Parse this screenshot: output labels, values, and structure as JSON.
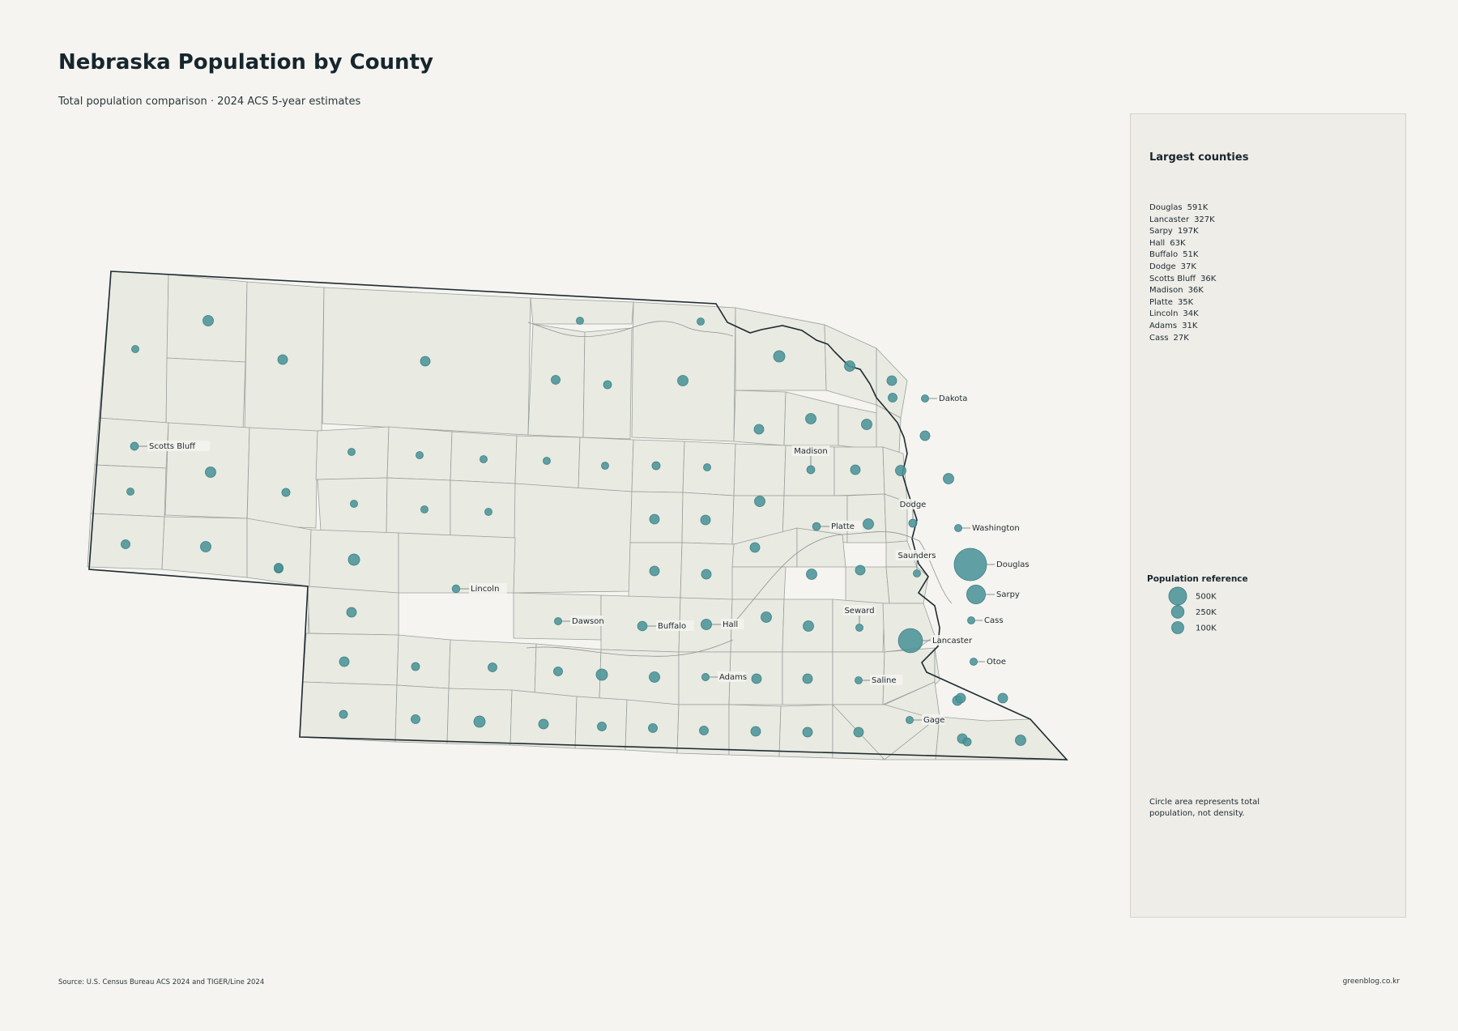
{
  "title": "Nebraska Population by County",
  "subtitle": "Total population comparison · 2024 ACS 5-year estimates",
  "colors": {
    "background": "#f5f4f0",
    "county_fill": "#e9eae2",
    "bubble": "#4b9498",
    "panel": "#efede8"
  },
  "panel": {
    "title": "Largest counties",
    "ranking": [
      {
        "name": "Douglas",
        "value": "591K"
      },
      {
        "name": "Lancaster",
        "value": "327K"
      },
      {
        "name": "Sarpy",
        "value": "197K"
      },
      {
        "name": "Hall",
        "value": "63K"
      },
      {
        "name": "Buffalo",
        "value": "51K"
      },
      {
        "name": "Dodge",
        "value": "37K"
      },
      {
        "name": "Scotts Bluff",
        "value": "36K"
      },
      {
        "name": "Madison",
        "value": "36K"
      },
      {
        "name": "Platte",
        "value": "35K"
      },
      {
        "name": "Lincoln",
        "value": "34K"
      },
      {
        "name": "Adams",
        "value": "31K"
      },
      {
        "name": "Cass",
        "value": "27K"
      }
    ],
    "legend_title": "Population reference",
    "legend_items": [
      {
        "label": "500K",
        "value": 500000
      },
      {
        "label": "250K",
        "value": 250000
      },
      {
        "label": "100K",
        "value": 100000
      }
    ],
    "note": "Circle area represents total population, not density."
  },
  "labeled_counties": [
    {
      "name": "Douglas",
      "population": 591000
    },
    {
      "name": "Lancaster",
      "population": 327000
    },
    {
      "name": "Sarpy",
      "population": 197000
    },
    {
      "name": "Hall",
      "population": 63000
    },
    {
      "name": "Buffalo",
      "population": 51000
    },
    {
      "name": "Dodge",
      "population": 37000
    },
    {
      "name": "Scotts Bluff",
      "population": 36000
    },
    {
      "name": "Madison",
      "population": 36000
    },
    {
      "name": "Platte",
      "population": 35000
    },
    {
      "name": "Lincoln",
      "population": 34000
    },
    {
      "name": "Adams",
      "population": 31000
    },
    {
      "name": "Cass",
      "population": 27000
    },
    {
      "name": "Saunders",
      "population": 22000
    },
    {
      "name": "Dakota",
      "population": 21000
    },
    {
      "name": "Washington",
      "population": 21000
    },
    {
      "name": "Dawson",
      "population": 24000
    },
    {
      "name": "Gage",
      "population": 21000
    },
    {
      "name": "Seward",
      "population": 17000
    },
    {
      "name": "Otoe",
      "population": 16000
    },
    {
      "name": "Saline",
      "population": 14000
    }
  ],
  "source": "Source: U.S. Census Bureau ACS 2024 and TIGER/Line 2024",
  "credit": "greenblog.co.kr"
}
